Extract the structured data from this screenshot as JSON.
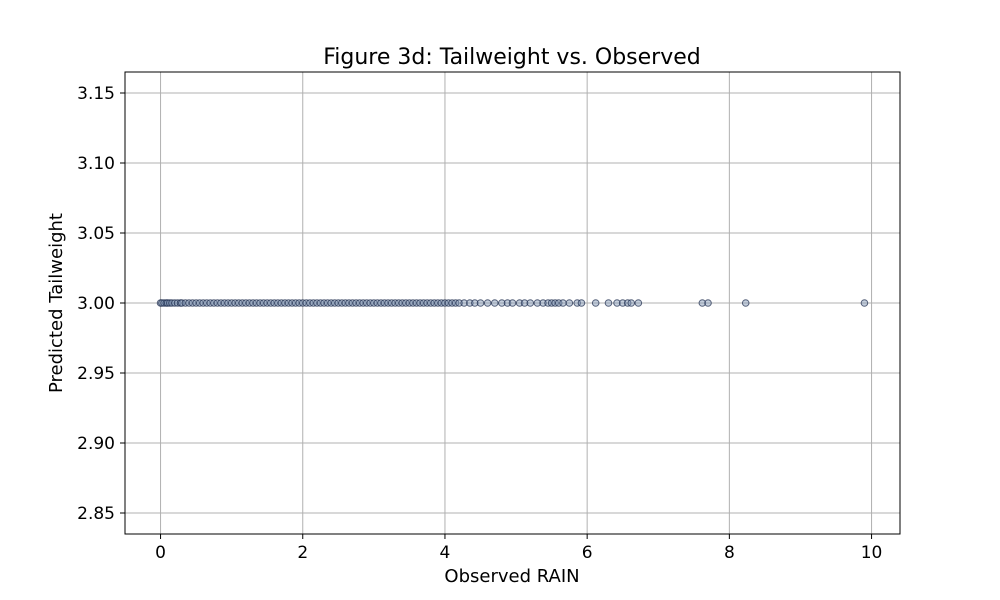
{
  "chart_data": {
    "type": "scatter",
    "title": "Figure 3d: Tailweight vs. Observed",
    "xlabel": "Observed RAIN",
    "ylabel": "Predicted Tailweight",
    "xlim": [
      -0.5,
      10.4
    ],
    "ylim": [
      2.835,
      3.165
    ],
    "xticks": [
      0,
      2,
      4,
      6,
      8,
      10
    ],
    "yticks": [
      2.85,
      2.9,
      2.95,
      3.0,
      3.05,
      3.1,
      3.15
    ],
    "xtick_labels": [
      "0",
      "2",
      "4",
      "6",
      "8",
      "10"
    ],
    "ytick_labels": [
      "2.85",
      "2.90",
      "2.95",
      "3.00",
      "3.05",
      "3.10",
      "3.15"
    ],
    "grid": true,
    "marker_fill": "#7f95b4",
    "marker_edge": "#1b2a4a",
    "marker_opacity": 0.45,
    "series": [
      {
        "points": [
          [
            0.0,
            3
          ],
          [
            0.02,
            3
          ],
          [
            0.05,
            3
          ],
          [
            0.08,
            3
          ],
          [
            0.1,
            3
          ],
          [
            0.13,
            3
          ],
          [
            0.16,
            3
          ],
          [
            0.2,
            3
          ],
          [
            0.24,
            3
          ],
          [
            0.28,
            3
          ],
          [
            0.3,
            3
          ],
          [
            0.35,
            3
          ],
          [
            0.4,
            3
          ],
          [
            0.45,
            3
          ],
          [
            0.5,
            3
          ],
          [
            0.55,
            3
          ],
          [
            0.6,
            3
          ],
          [
            0.65,
            3
          ],
          [
            0.7,
            3
          ],
          [
            0.75,
            3
          ],
          [
            0.8,
            3
          ],
          [
            0.85,
            3
          ],
          [
            0.9,
            3
          ],
          [
            0.95,
            3
          ],
          [
            1.0,
            3
          ],
          [
            1.05,
            3
          ],
          [
            1.1,
            3
          ],
          [
            1.15,
            3
          ],
          [
            1.2,
            3
          ],
          [
            1.25,
            3
          ],
          [
            1.3,
            3
          ],
          [
            1.35,
            3
          ],
          [
            1.4,
            3
          ],
          [
            1.45,
            3
          ],
          [
            1.5,
            3
          ],
          [
            1.55,
            3
          ],
          [
            1.6,
            3
          ],
          [
            1.65,
            3
          ],
          [
            1.7,
            3
          ],
          [
            1.75,
            3
          ],
          [
            1.8,
            3
          ],
          [
            1.85,
            3
          ],
          [
            1.9,
            3
          ],
          [
            1.95,
            3
          ],
          [
            2.0,
            3
          ],
          [
            2.05,
            3
          ],
          [
            2.1,
            3
          ],
          [
            2.15,
            3
          ],
          [
            2.2,
            3
          ],
          [
            2.25,
            3
          ],
          [
            2.3,
            3
          ],
          [
            2.35,
            3
          ],
          [
            2.4,
            3
          ],
          [
            2.45,
            3
          ],
          [
            2.5,
            3
          ],
          [
            2.55,
            3
          ],
          [
            2.6,
            3
          ],
          [
            2.65,
            3
          ],
          [
            2.7,
            3
          ],
          [
            2.75,
            3
          ],
          [
            2.8,
            3
          ],
          [
            2.85,
            3
          ],
          [
            2.9,
            3
          ],
          [
            2.95,
            3
          ],
          [
            3.0,
            3
          ],
          [
            3.05,
            3
          ],
          [
            3.1,
            3
          ],
          [
            3.15,
            3
          ],
          [
            3.2,
            3
          ],
          [
            3.25,
            3
          ],
          [
            3.3,
            3
          ],
          [
            3.35,
            3
          ],
          [
            3.4,
            3
          ],
          [
            3.45,
            3
          ],
          [
            3.5,
            3
          ],
          [
            3.55,
            3
          ],
          [
            3.6,
            3
          ],
          [
            3.65,
            3
          ],
          [
            3.7,
            3
          ],
          [
            3.75,
            3
          ],
          [
            3.8,
            3
          ],
          [
            3.85,
            3
          ],
          [
            3.9,
            3
          ],
          [
            3.95,
            3
          ],
          [
            4.0,
            3
          ],
          [
            4.05,
            3
          ],
          [
            4.1,
            3
          ],
          [
            4.15,
            3
          ],
          [
            4.2,
            3
          ],
          [
            4.27,
            3
          ],
          [
            4.35,
            3
          ],
          [
            4.42,
            3
          ],
          [
            4.5,
            3
          ],
          [
            4.6,
            3
          ],
          [
            4.7,
            3
          ],
          [
            4.8,
            3
          ],
          [
            4.88,
            3
          ],
          [
            4.95,
            3
          ],
          [
            5.05,
            3
          ],
          [
            5.12,
            3
          ],
          [
            5.2,
            3
          ],
          [
            5.3,
            3
          ],
          [
            5.38,
            3
          ],
          [
            5.45,
            3
          ],
          [
            5.5,
            3
          ],
          [
            5.55,
            3
          ],
          [
            5.6,
            3
          ],
          [
            5.66,
            3
          ],
          [
            5.75,
            3
          ],
          [
            5.86,
            3
          ],
          [
            5.92,
            3
          ],
          [
            6.12,
            3
          ],
          [
            6.3,
            3
          ],
          [
            6.42,
            3
          ],
          [
            6.5,
            3
          ],
          [
            6.57,
            3
          ],
          [
            6.62,
            3
          ],
          [
            6.72,
            3
          ],
          [
            7.62,
            3
          ],
          [
            7.7,
            3
          ],
          [
            8.23,
            3
          ],
          [
            9.9,
            3
          ]
        ]
      }
    ]
  }
}
